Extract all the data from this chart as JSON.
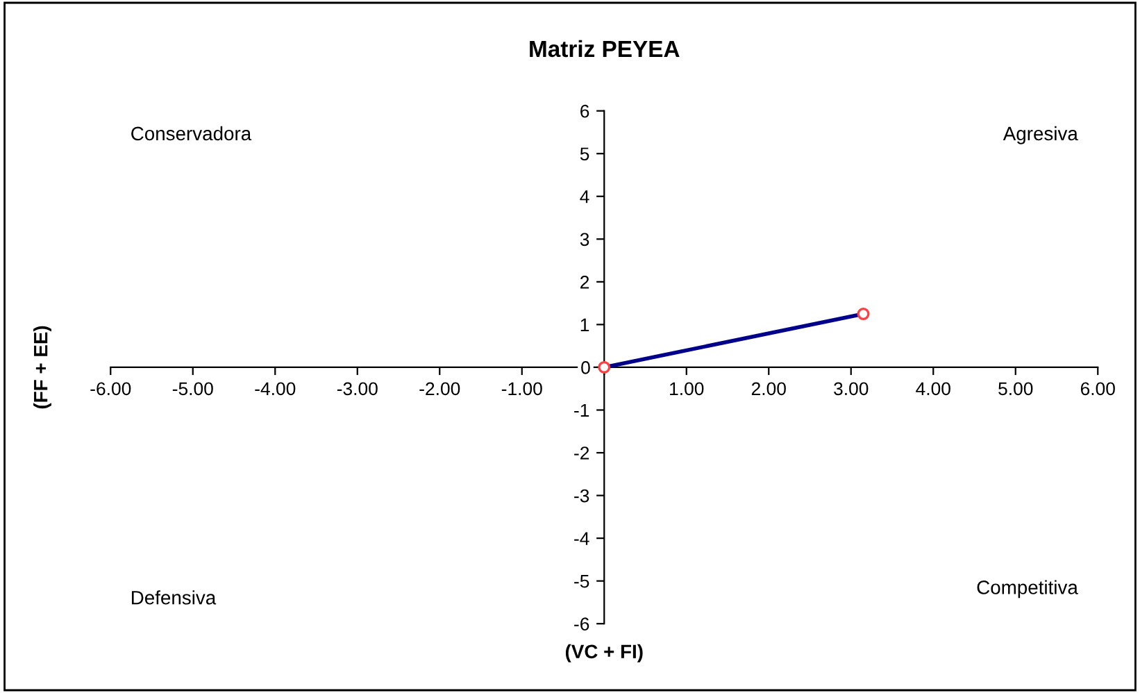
{
  "chart_data": {
    "type": "line",
    "title": "Matriz PEYEA",
    "xlabel": "(VC + FI)",
    "ylabel": "(FF + EE)",
    "x": [
      0,
      3.15
    ],
    "series": [
      {
        "color": "#00008b",
        "values": [
          0,
          1.25
        ]
      },
      {
        "type": "scatter",
        "color": "#ff4040",
        "marker": "circle",
        "values": [
          0,
          1.25
        ]
      }
    ],
    "line_style": "solid",
    "xlim": [
      -6,
      6
    ],
    "ylim": [
      -6,
      6
    ],
    "xticks": [
      {
        "value": -6,
        "label": "-6.00"
      },
      {
        "value": -5,
        "label": "-5.00"
      },
      {
        "value": -4,
        "label": "-4.00"
      },
      {
        "value": -3,
        "label": "-3.00"
      },
      {
        "value": -2,
        "label": "-2.00"
      },
      {
        "value": -1,
        "label": "-1.00"
      },
      {
        "value": 0,
        "label": null
      },
      {
        "value": 1,
        "label": "1.00"
      },
      {
        "value": 2,
        "label": "2.00"
      },
      {
        "value": 3,
        "label": "3.00"
      },
      {
        "value": 4,
        "label": "4.00"
      },
      {
        "value": 5,
        "label": "5.00"
      },
      {
        "value": 6,
        "label": "6.00"
      }
    ],
    "yticks": [
      -6,
      -5,
      -4,
      -3,
      -2,
      -1,
      0,
      1,
      2,
      3,
      4,
      5,
      6
    ],
    "annotations": [
      "Conservadora",
      "Agresiva",
      "Defensiva",
      "Competitiva"
    ],
    "grid": false,
    "legend": false
  }
}
